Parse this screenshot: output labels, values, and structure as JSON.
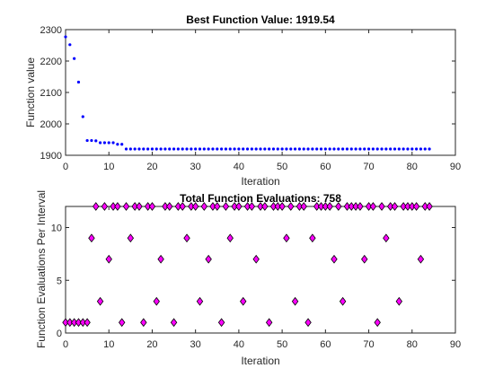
{
  "figure": {
    "background": "#ffffff"
  },
  "chart_data": [
    {
      "type": "scatter",
      "title": "Best Function Value: 1919.54",
      "xlabel": "Iteration",
      "ylabel": "Function value",
      "xlim": [
        0,
        90
      ],
      "ylim": [
        1900,
        2300
      ],
      "xticks": [
        0,
        10,
        20,
        30,
        40,
        50,
        60,
        70,
        80,
        90
      ],
      "yticks": [
        1900,
        2000,
        2100,
        2200,
        2300
      ],
      "grid": false,
      "marker": "point",
      "color": "#0000ff",
      "series": [
        {
          "x": [
            0,
            1,
            2,
            3,
            4,
            5,
            6,
            7,
            8,
            9,
            10,
            11,
            12,
            13,
            14,
            15,
            16,
            17,
            18,
            19,
            20,
            21,
            22,
            23,
            24,
            25,
            26,
            27,
            28,
            29,
            30,
            31,
            32,
            33,
            34,
            35,
            36,
            37,
            38,
            39,
            40,
            41,
            42,
            43,
            44,
            45,
            46,
            47,
            48,
            49,
            50,
            51,
            52,
            53,
            54,
            55,
            56,
            57,
            58,
            59,
            60,
            61,
            62,
            63,
            64,
            65,
            66,
            67,
            68,
            69,
            70,
            71,
            72,
            73,
            74,
            75,
            76,
            77,
            78,
            79,
            80,
            81,
            82,
            83,
            84
          ],
          "y": [
            2277,
            2252,
            2208,
            2133,
            2023,
            1947,
            1947,
            1946,
            1940,
            1940,
            1940,
            1940,
            1935,
            1935,
            1920,
            1920,
            1920,
            1920,
            1920,
            1920,
            1920,
            1920,
            1920,
            1920,
            1920,
            1920,
            1920,
            1920,
            1920,
            1920,
            1920,
            1920,
            1920,
            1920,
            1920,
            1920,
            1920,
            1920,
            1920,
            1920,
            1920,
            1920,
            1920,
            1920,
            1920,
            1920,
            1920,
            1920,
            1920,
            1920,
            1920,
            1920,
            1920,
            1920,
            1920,
            1920,
            1920,
            1920,
            1920,
            1920,
            1920,
            1920,
            1920,
            1920,
            1920,
            1920,
            1920,
            1920,
            1920,
            1920,
            1920,
            1920,
            1920,
            1920,
            1920,
            1920,
            1920,
            1920,
            1920,
            1920,
            1920,
            1920,
            1920,
            1920,
            1920
          ]
        }
      ]
    },
    {
      "type": "scatter",
      "title": "Total Function Evaluations: 758",
      "xlabel": "Iteration",
      "ylabel": "Function Evaluations Per Interval",
      "xlim": [
        0,
        90
      ],
      "ylim": [
        0,
        12
      ],
      "xticks": [
        0,
        10,
        20,
        30,
        40,
        50,
        60,
        70,
        80,
        90
      ],
      "yticks": [
        0,
        5,
        10
      ],
      "grid": false,
      "marker": "diamond",
      "color": "#ff00ff",
      "edgecolor": "#000000",
      "series": [
        {
          "x": [
            0,
            1,
            2,
            3,
            4,
            5,
            6,
            7,
            8,
            9,
            10,
            11,
            12,
            13,
            14,
            15,
            16,
            17,
            18,
            19,
            20,
            21,
            22,
            23,
            24,
            25,
            26,
            27,
            28,
            29,
            30,
            31,
            32,
            33,
            34,
            35,
            36,
            37,
            38,
            39,
            40,
            41,
            42,
            43,
            44,
            45,
            46,
            47,
            48,
            49,
            50,
            51,
            52,
            53,
            54,
            55,
            56,
            57,
            58,
            59,
            60,
            61,
            62,
            63,
            64,
            65,
            66,
            67,
            68,
            69,
            70,
            71,
            72,
            73,
            74,
            75,
            76,
            77,
            78,
            79,
            80,
            81,
            82,
            83,
            84
          ],
          "y": [
            1,
            1,
            1,
            1,
            1,
            1,
            9,
            12,
            3,
            12,
            7,
            12,
            12,
            1,
            12,
            9,
            12,
            12,
            1,
            12,
            12,
            3,
            7,
            12,
            12,
            1,
            12,
            12,
            9,
            12,
            12,
            3,
            12,
            7,
            12,
            12,
            1,
            12,
            9,
            12,
            12,
            3,
            12,
            12,
            7,
            12,
            12,
            1,
            12,
            12,
            12,
            9,
            12,
            3,
            12,
            12,
            1,
            9,
            12,
            12,
            12,
            12,
            7,
            12,
            3,
            12,
            12,
            12,
            12,
            7,
            12,
            12,
            1,
            12,
            9,
            12,
            12,
            3,
            12,
            12,
            12,
            12,
            7,
            12,
            12
          ]
        }
      ]
    }
  ]
}
